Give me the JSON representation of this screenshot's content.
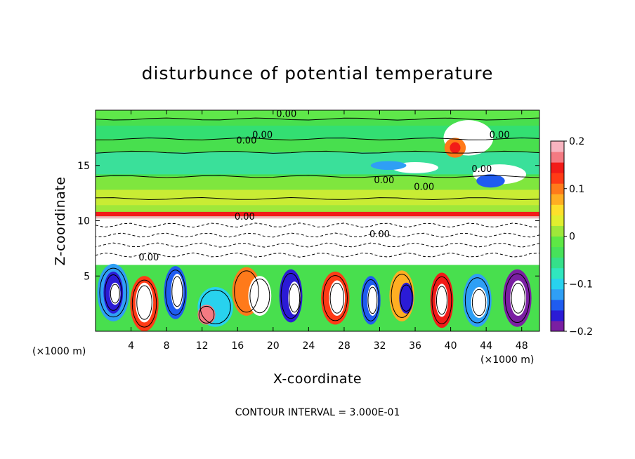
{
  "chart_data": {
    "type": "heatmap",
    "title": "disturbunce of potential temperature",
    "xlabel": "X-coordinate",
    "ylabel": "Z-coordinate",
    "x_unit": "(×1000 m)",
    "z_unit": "(×1000 m)",
    "xlim": [
      0,
      50
    ],
    "ylim": [
      0,
      20
    ],
    "x_ticks": [
      4,
      8,
      12,
      16,
      20,
      24,
      28,
      32,
      36,
      40,
      44,
      48
    ],
    "y_ticks": [
      5,
      10,
      15
    ],
    "colorbar": {
      "vmin": -0.2,
      "vmax": 0.2,
      "tick_labels": [
        "0.2",
        "0.1",
        "0",
        "−0.1",
        "−0.2"
      ],
      "tick_values": [
        0.2,
        0.1,
        0,
        -0.1,
        -0.2
      ],
      "colors": [
        "#7a1fa2",
        "#2b1bd6",
        "#1f5cf0",
        "#2f9ff5",
        "#28d2ee",
        "#30e6be",
        "#35e08a",
        "#47e25a",
        "#5ee845",
        "#9fe83a",
        "#e1ef2f",
        "#fde02b",
        "#ffae22",
        "#ff7a1a",
        "#ff3b16",
        "#f21b18",
        "#f47a82",
        "#f8b4c0"
      ]
    },
    "contour_labels": [
      "0.00",
      "0.00",
      "0.00",
      "0.00",
      "0.00",
      "0.00",
      "0.00",
      "0.00",
      "0.00",
      "0.00"
    ],
    "contour_interval_text": "CONTOUR INTERVAL = 3.000E-01"
  }
}
